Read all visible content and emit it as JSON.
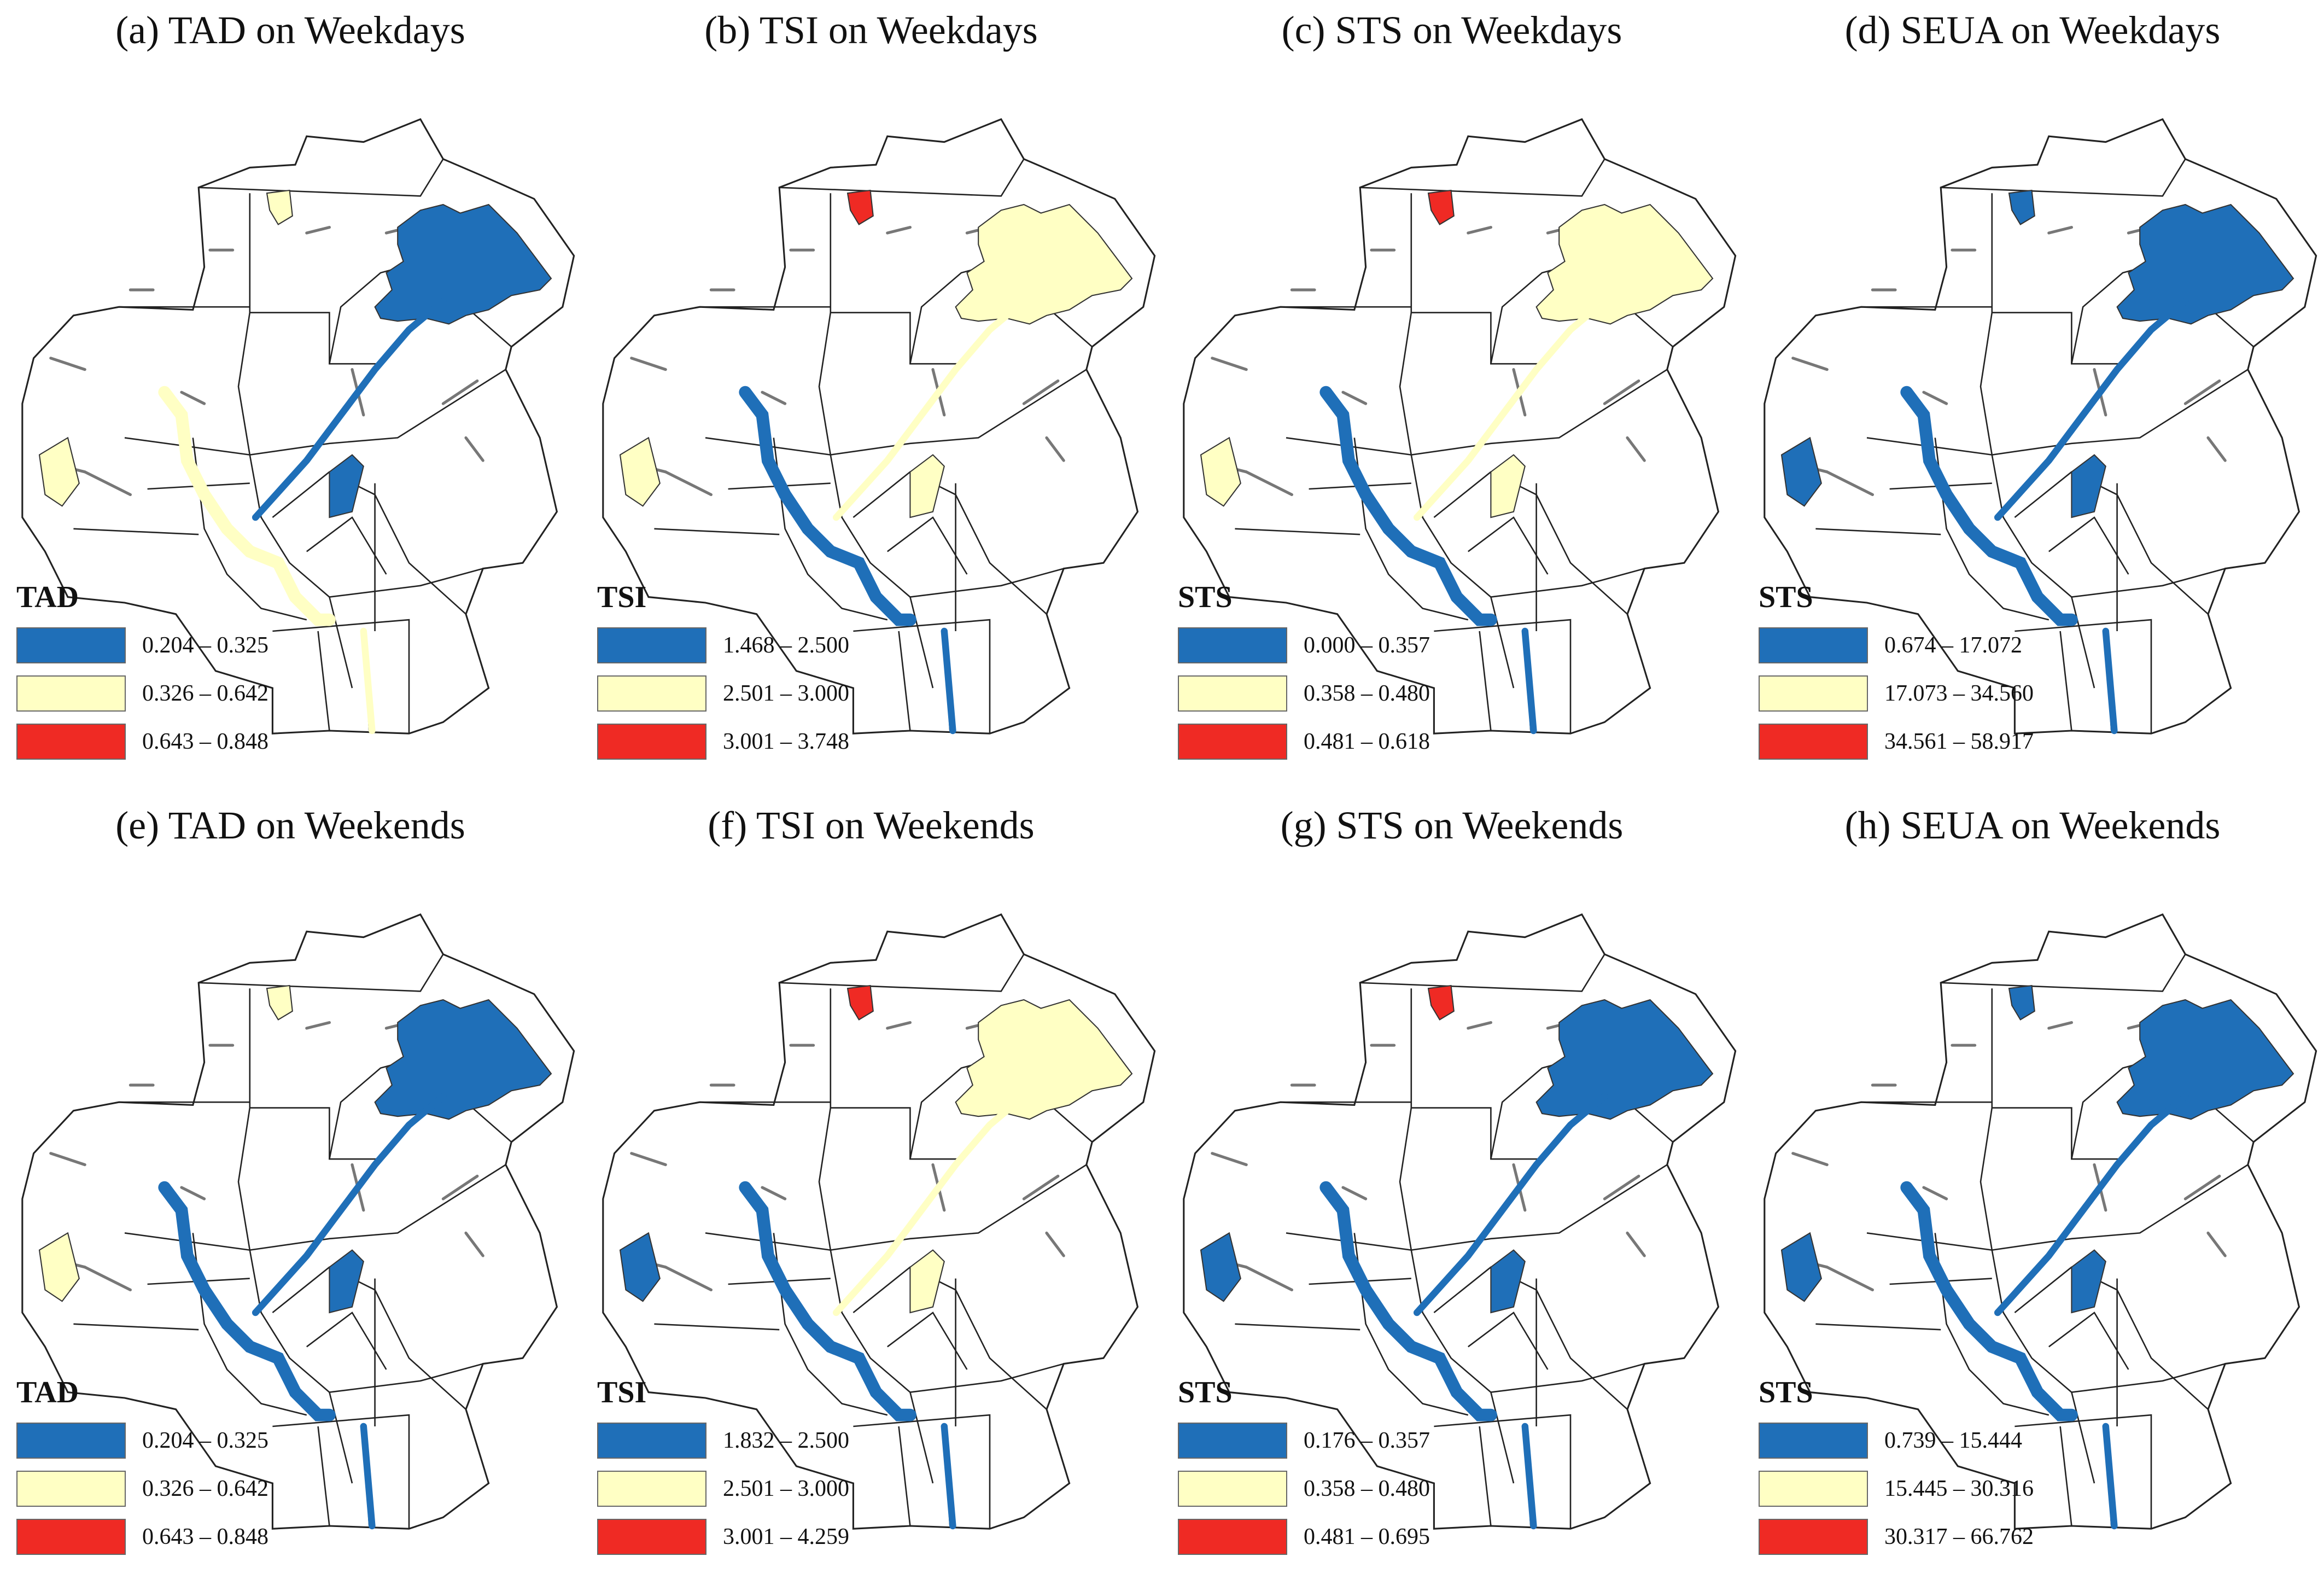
{
  "colors": {
    "low": "#1f6fb8",
    "mid": "#ffffc4",
    "high": "#ef2a24",
    "outline": "#222222"
  },
  "panels": [
    {
      "title": "(a) TAD on Weekdays",
      "legend_title": "TAD",
      "classes": [
        "0.204 – 0.325",
        "0.326 – 0.642",
        "0.643 – 0.848"
      ],
      "lake_class": "low",
      "west_class": "mid",
      "south_class": "mid",
      "north_class": "mid",
      "center_class": "low"
    },
    {
      "title": "(b) TSI on Weekdays",
      "legend_title": "TSI",
      "classes": [
        "1.468 – 2.500",
        "2.501 – 3.000",
        "3.001 – 3.748"
      ],
      "lake_class": "mid",
      "west_class": "mid",
      "south_class": "low",
      "north_class": "high",
      "center_class": "mid"
    },
    {
      "title": "(c) STS on Weekdays",
      "legend_title": "STS",
      "classes": [
        "0.000 – 0.357",
        "0.358 – 0.480",
        "0.481 – 0.618"
      ],
      "lake_class": "mid",
      "west_class": "mid",
      "south_class": "low",
      "north_class": "high",
      "center_class": "mid"
    },
    {
      "title": "(d) SEUA on Weekdays",
      "legend_title": "STS",
      "classes": [
        "0.674 – 17.072",
        "17.073 – 34.560",
        "34.561 – 58.917"
      ],
      "lake_class": "low",
      "west_class": "low",
      "south_class": "low",
      "north_class": "low",
      "center_class": "low"
    },
    {
      "title": "(e) TAD on Weekends",
      "legend_title": "TAD",
      "classes": [
        "0.204 – 0.325",
        "0.326 – 0.642",
        "0.643 – 0.848"
      ],
      "lake_class": "low",
      "west_class": "mid",
      "south_class": "low",
      "north_class": "mid",
      "center_class": "low"
    },
    {
      "title": "(f) TSI on Weekends",
      "legend_title": "TSI",
      "classes": [
        "1.832 – 2.500",
        "2.501 – 3.000",
        "3.001 – 4.259"
      ],
      "lake_class": "mid",
      "west_class": "low",
      "south_class": "low",
      "north_class": "high",
      "center_class": "mid"
    },
    {
      "title": "(g) STS on Weekends",
      "legend_title": "STS",
      "classes": [
        "0.176 – 0.357",
        "0.358 – 0.480",
        "0.481 – 0.695"
      ],
      "lake_class": "low",
      "west_class": "low",
      "south_class": "low",
      "north_class": "high",
      "center_class": "low"
    },
    {
      "title": "(h) SEUA on Weekends",
      "legend_title": "STS",
      "classes": [
        "0.739 – 15.444",
        "15.445 – 30.316",
        "30.317 – 66.762"
      ],
      "lake_class": "low",
      "west_class": "low",
      "south_class": "low",
      "north_class": "low",
      "center_class": "low"
    }
  ]
}
